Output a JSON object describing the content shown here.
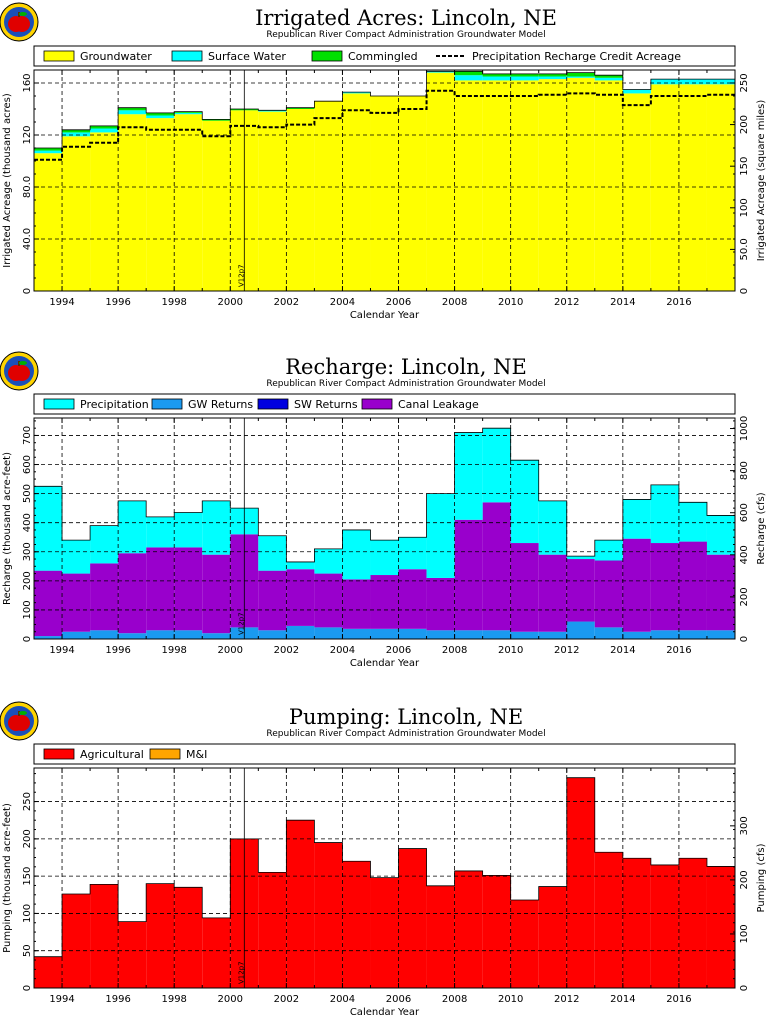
{
  "chart_data": [
    {
      "type": "area",
      "title": "Irrigated Acres: Lincoln, NE",
      "subtitle": "Republican River Compact Administration Groundwater Model",
      "xlabel": "Calendar Year",
      "ylabel": "Irrigated Acreage (thousand acres)",
      "ylabel_right": "Irrigated Acreage (square miles)",
      "xlim": [
        1993,
        2018
      ],
      "ylim": [
        0,
        170
      ],
      "ylim_right": [
        0,
        265.6
      ],
      "x_ticks": [
        "1994",
        "1996",
        "1998",
        "2000",
        "2002",
        "2004",
        "2006",
        "2008",
        "2010",
        "2012",
        "2014",
        "2016"
      ],
      "y_ticks": [
        "0",
        "40.0",
        "80.0",
        "120",
        "160"
      ],
      "y_ticks_right": [
        "0",
        "50.0",
        "100",
        "150",
        "200",
        "250"
      ],
      "vertical_marker": {
        "x": 2000.5,
        "label": "V12p7"
      },
      "legend": [
        "Groundwater",
        "Surface Water",
        "Commingled",
        "Precipitation Recharge Credit Acreage"
      ],
      "categories": [
        1993,
        1994,
        1995,
        1996,
        1997,
        1998,
        1999,
        2000,
        2001,
        2002,
        2003,
        2004,
        2005,
        2006,
        2007,
        2008,
        2009,
        2010,
        2011,
        2012,
        2013,
        2014,
        2015,
        2016,
        2017
      ],
      "series": [
        {
          "name": "Groundwater",
          "color": "#ffff00",
          "values": [
            106,
            119,
            122,
            136,
            133,
            136,
            131,
            139,
            138,
            140,
            146,
            152,
            150,
            150,
            168,
            162,
            162,
            162,
            163,
            164,
            162,
            152,
            159,
            159,
            159
          ]
        },
        {
          "name": "Surface Water",
          "color": "#00ffff",
          "values": [
            2,
            3,
            3,
            3,
            2,
            1,
            0,
            0,
            1,
            0,
            0,
            1,
            0,
            0,
            1,
            4,
            3,
            3,
            2,
            1,
            2,
            3,
            4,
            4,
            4
          ]
        },
        {
          "name": "Commingled",
          "color": "#00e000",
          "values": [
            2,
            2,
            2,
            2,
            2,
            1,
            1,
            1,
            0,
            1,
            0,
            0,
            0,
            0,
            0,
            3,
            2,
            2,
            2,
            3,
            2,
            0,
            0,
            0,
            0
          ]
        },
        {
          "name": "Precipitation Recharge Credit Acreage",
          "style": "dashed",
          "values": [
            101,
            111,
            114,
            126,
            124,
            124,
            119,
            127,
            126,
            128,
            133,
            139,
            137,
            140,
            154,
            150,
            150,
            150,
            151,
            152,
            151,
            143,
            150,
            150,
            151
          ]
        }
      ]
    },
    {
      "type": "area",
      "title": "Recharge: Lincoln, NE",
      "subtitle": "Republican River Compact Administration Groundwater Model",
      "xlabel": "Calendar Year",
      "ylabel": "Recharge (thousand acre-feet)",
      "ylabel_right": "Recharge (cfs)",
      "xlim": [
        1993,
        2018
      ],
      "ylim": [
        0,
        760
      ],
      "ylim_right": [
        0,
        1050
      ],
      "x_ticks": [
        "1994",
        "1996",
        "1998",
        "2000",
        "2002",
        "2004",
        "2006",
        "2008",
        "2010",
        "2012",
        "2014",
        "2016"
      ],
      "y_ticks": [
        "0",
        "100",
        "200",
        "300",
        "400",
        "500",
        "600",
        "700"
      ],
      "y_ticks_right": [
        "0",
        "200",
        "400",
        "600",
        "800",
        "1000"
      ],
      "vertical_marker": {
        "x": 2000.5,
        "label": "V12p7"
      },
      "legend": [
        "Precipitation",
        "GW Returns",
        "SW Returns",
        "Canal Leakage"
      ],
      "categories": [
        1993,
        1994,
        1995,
        1996,
        1997,
        1998,
        1999,
        2000,
        2001,
        2002,
        2003,
        2004,
        2005,
        2006,
        2007,
        2008,
        2009,
        2010,
        2011,
        2012,
        2013,
        2014,
        2015,
        2016,
        2017
      ],
      "series": [
        {
          "name": "GW Returns",
          "color": "#1a9af0",
          "values": [
            10,
            25,
            30,
            20,
            30,
            30,
            20,
            40,
            30,
            45,
            40,
            35,
            35,
            35,
            30,
            30,
            30,
            25,
            25,
            60,
            40,
            25,
            30,
            30,
            30
          ]
        },
        {
          "name": "SW Returns",
          "color": "#0000e0",
          "values": [
            0,
            0,
            0,
            0,
            0,
            0,
            0,
            0,
            0,
            0,
            0,
            0,
            0,
            0,
            0,
            0,
            0,
            0,
            0,
            0,
            0,
            0,
            0,
            0,
            0
          ]
        },
        {
          "name": "Canal Leakage",
          "color": "#9900cc",
          "values": [
            225,
            200,
            230,
            275,
            285,
            285,
            270,
            320,
            205,
            195,
            185,
            170,
            185,
            205,
            180,
            380,
            440,
            305,
            265,
            215,
            230,
            320,
            300,
            305,
            260
          ]
        },
        {
          "name": "Precipitation",
          "color": "#00ffff",
          "values": [
            290,
            115,
            130,
            180,
            105,
            120,
            185,
            90,
            120,
            25,
            85,
            170,
            120,
            110,
            290,
            300,
            255,
            285,
            185,
            10,
            70,
            135,
            200,
            135,
            135
          ]
        }
      ]
    },
    {
      "type": "bar",
      "title": "Pumping: Lincoln, NE",
      "subtitle": "Republican River Compact Administration Groundwater Model",
      "xlabel": "Calendar Year",
      "ylabel": "Pumping (thousand acre-feet)",
      "ylabel_right": "Pumping (cfs)",
      "xlim": [
        1993,
        2018
      ],
      "ylim": [
        0,
        295
      ],
      "ylim_right": [
        0,
        407
      ],
      "x_ticks": [
        "1994",
        "1996",
        "1998",
        "2000",
        "2002",
        "2004",
        "2006",
        "2008",
        "2010",
        "2012",
        "2014",
        "2016"
      ],
      "y_ticks": [
        "0",
        "50",
        "100",
        "150",
        "200",
        "250"
      ],
      "y_ticks_right": [
        "0",
        "100",
        "200",
        "300"
      ],
      "vertical_marker": {
        "x": 2000.5,
        "label": "V12p7"
      },
      "legend": [
        "Agricultural",
        "M&I"
      ],
      "categories": [
        1993,
        1994,
        1995,
        1996,
        1997,
        1998,
        1999,
        2000,
        2001,
        2002,
        2003,
        2004,
        2005,
        2006,
        2007,
        2008,
        2009,
        2010,
        2011,
        2012,
        2013,
        2014,
        2015,
        2016,
        2017
      ],
      "series": [
        {
          "name": "Agricultural",
          "color": "#ff0000",
          "values": [
            42,
            126,
            139,
            89,
            140,
            135,
            94,
            200,
            155,
            225,
            195,
            170,
            148,
            187,
            137,
            157,
            151,
            118,
            136,
            282,
            182,
            174,
            165,
            174,
            163
          ]
        },
        {
          "name": "M&I",
          "color": "#ffa500",
          "values": [
            0,
            0,
            0,
            0,
            0,
            0,
            0,
            0,
            0,
            0,
            0,
            0,
            0,
            0,
            0,
            0,
            0,
            0,
            0,
            0,
            0,
            0,
            0,
            0,
            0
          ]
        }
      ]
    }
  ]
}
